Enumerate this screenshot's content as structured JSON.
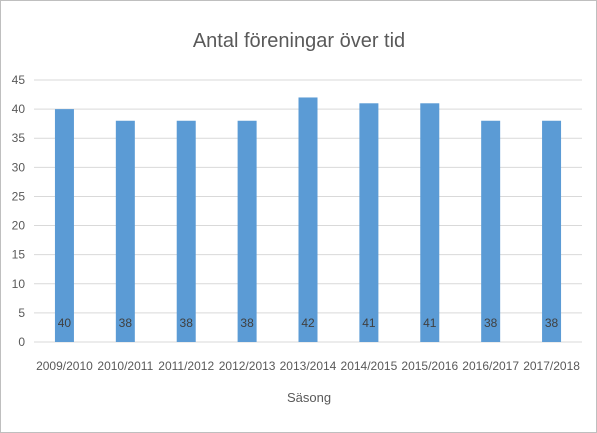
{
  "chart_data": {
    "type": "bar",
    "title": "Antal föreningar över tid",
    "xlabel": "Säsong",
    "ylabel": "",
    "categories": [
      "2009/2010",
      "2010/2011",
      "2011/2012",
      "2012/2013",
      "2013/2014",
      "2014/2015",
      "2015/2016",
      "2016/2017",
      "2017/2018"
    ],
    "values": [
      40,
      38,
      38,
      38,
      42,
      41,
      41,
      38,
      38
    ],
    "data_labels": [
      "40",
      "38",
      "38",
      "38",
      "42",
      "41",
      "41",
      "38",
      "38"
    ],
    "yticks": [
      "0",
      "5",
      "10",
      "15",
      "20",
      "25",
      "30",
      "35",
      "40",
      "45"
    ],
    "ylim": [
      0,
      45
    ],
    "grid": true,
    "legend": "none",
    "bar_color": "#5b9bd5",
    "data_label_position": "inside-base"
  }
}
